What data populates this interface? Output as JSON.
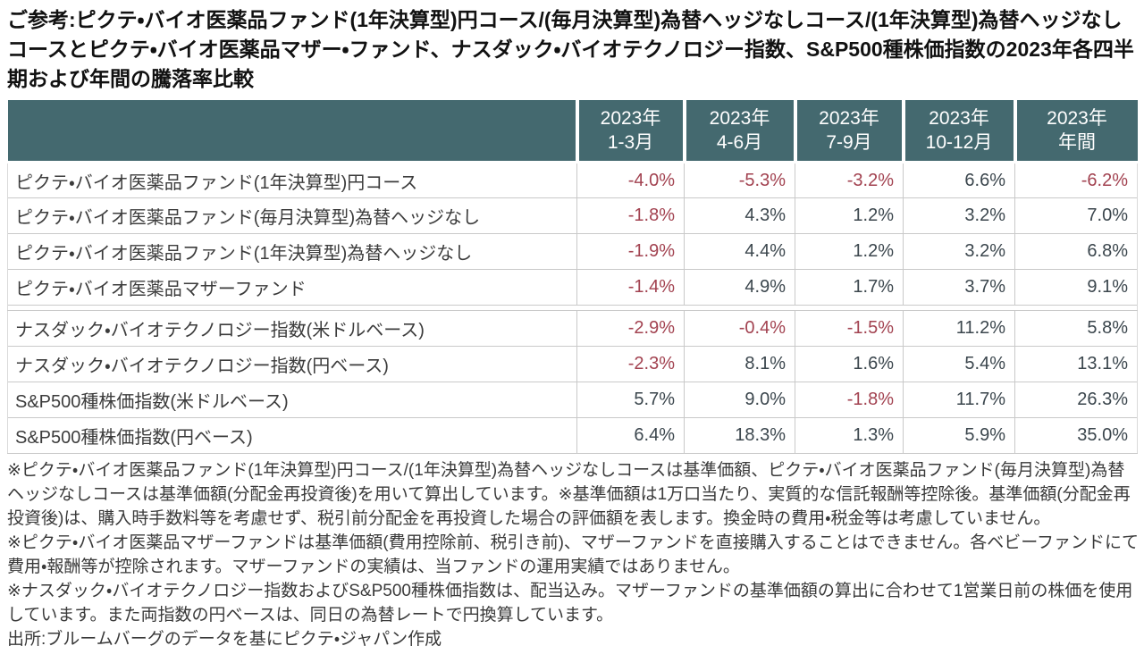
{
  "title": "ご参考:ピクテ・バイオ医薬品ファンド(1年決算型)円コース/(毎月決算型)為替ヘッジなしコース/(1年決算型)為替ヘッジなしコースとピクテ・バイオ医薬品マザー・ファンド、ナスダック・バイオテクノロジー指数、S&P500種株価指数の2023年各四半期および年間の騰落率比較",
  "colors": {
    "header_background": "#44696F",
    "header_text": "#FFFFFF",
    "positive_value": "#3B464D",
    "negative_value": "#A24250",
    "grid_border": "#C9C9C9"
  },
  "chart_data": {
    "type": "table",
    "columns": [
      "2023年\n1-3月",
      "2023年\n4-6月",
      "2023年\n7-9月",
      "2023年\n10-12月",
      "2023年\n年間"
    ],
    "sections": [
      {
        "rows": [
          {
            "label": "ピクテ・バイオ医薬品ファンド(1年決算型)円コース",
            "values": [
              "-4.0%",
              "-5.3%",
              "-3.2%",
              "6.6%",
              "-6.2%"
            ]
          },
          {
            "label": "ピクテ・バイオ医薬品ファンド(毎月決算型)為替ヘッジなし",
            "values": [
              "-1.8%",
              "4.3%",
              "1.2%",
              "3.2%",
              "7.0%"
            ]
          },
          {
            "label": "ピクテ・バイオ医薬品ファンド(1年決算型)為替ヘッジなし",
            "values": [
              "-1.9%",
              "4.4%",
              "1.2%",
              "3.2%",
              "6.8%"
            ]
          },
          {
            "label": "ピクテ・バイオ医薬品マザーファンド",
            "values": [
              "-1.4%",
              "4.9%",
              "1.7%",
              "3.7%",
              "9.1%"
            ]
          }
        ]
      },
      {
        "rows": [
          {
            "label": "ナスダック・バイオテクノロジー指数(米ドルベース)",
            "values": [
              "-2.9%",
              "-0.4%",
              "-1.5%",
              "11.2%",
              "5.8%"
            ]
          },
          {
            "label": "ナスダック・バイオテクノロジー指数(円ベース)",
            "values": [
              "-2.3%",
              "8.1%",
              "1.6%",
              "5.4%",
              "13.1%"
            ]
          },
          {
            "label": "S&P500種株価指数(米ドルベース)",
            "values": [
              "5.7%",
              "9.0%",
              "-1.8%",
              "11.7%",
              "26.3%"
            ]
          },
          {
            "label": "S&P500種株価指数(円ベース)",
            "values": [
              "6.4%",
              "18.3%",
              "1.3%",
              "5.9%",
              "35.0%"
            ]
          }
        ]
      }
    ]
  },
  "footnotes": [
    "※ピクテ・バイオ医薬品ファンド(1年決算型)円コース/(1年決算型)為替ヘッジなしコースは基準価額、ピクテ・バイオ医薬品ファンド(毎月決算型)為替ヘッジなしコースは基準価額(分配金再投資後)を用いて算出しています。※基準価額は1万口当たり、実質的な信託報酬等控除後。基準価額(分配金再投資後)は、購入時手数料等を考慮せず、税引前分配金を再投資した場合の評価額を表します。換金時の費用・税金等は考慮していません。",
    "※ピクテ・バイオ医薬品マザーファンドは基準価額(費用控除前、税引き前)、マザーファンドを直接購入することはできません。各ベビーファンドにて費用・報酬等が控除されます。マザーファンドの実績は、当ファンドの運用実績ではありません。",
    "※ナスダック・バイオテクノロジー指数およびS&P500種株価指数は、配当込み。マザーファンドの基準価額の算出に合わせて1営業日前の株価を使用しています。また両指数の円ベースは、同日の為替レートで円換算しています。"
  ],
  "source": "出所:ブルームバーグのデータを基にピクテ・ジャパン作成"
}
